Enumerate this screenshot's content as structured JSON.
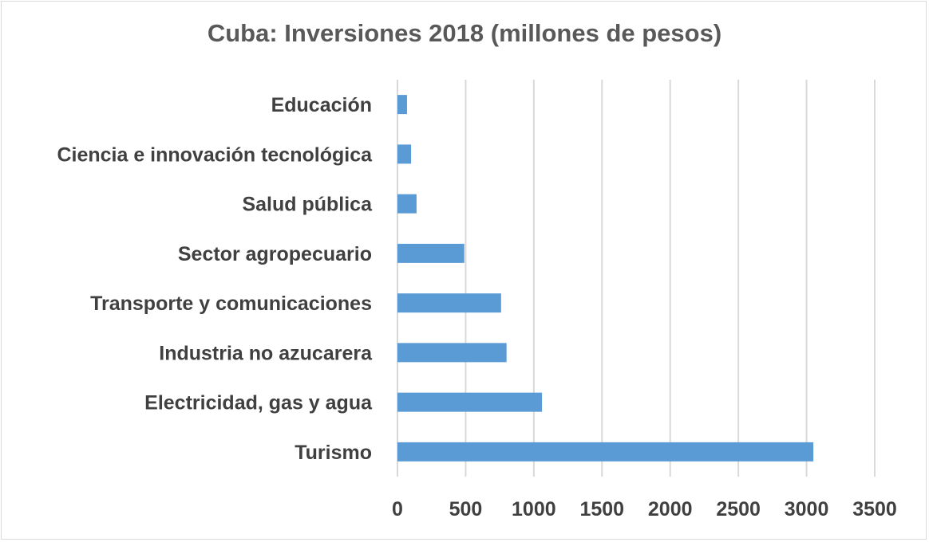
{
  "chart_data": {
    "type": "bar",
    "orientation": "horizontal",
    "title": "Cuba: Inversiones 2018 (millones de pesos)",
    "xlabel": "",
    "ylabel": "",
    "categories": [
      "Educación",
      "Ciencia e innovación tecnológica",
      "Salud pública",
      "Sector agropecuario",
      "Transporte y comunicaciones",
      "Industria no azucarera",
      "Electricidad, gas y agua",
      "Turismo"
    ],
    "values": [
      70,
      100,
      140,
      490,
      760,
      800,
      1060,
      3050
    ],
    "xlim": [
      0,
      3500
    ],
    "xticks": [
      "0",
      "500",
      "1000",
      "1500",
      "2000",
      "2500",
      "3000",
      "3500"
    ],
    "grid": "vertical",
    "legend": "none",
    "colors": {
      "bar": "#5b9bd5",
      "grid": "#d9d9d9",
      "text": "#404040",
      "title": "#595959"
    }
  }
}
